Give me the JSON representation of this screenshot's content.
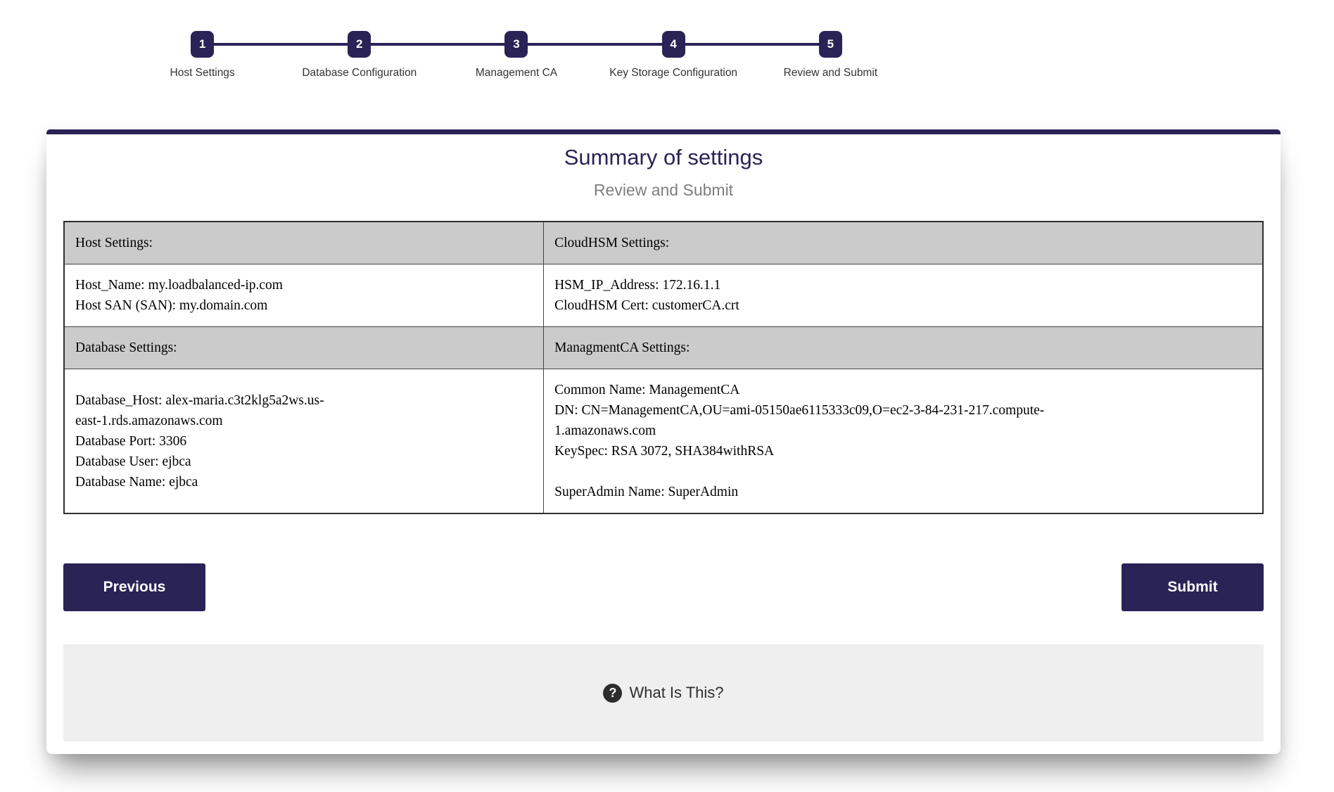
{
  "colors": {
    "accent_navy": "#2a2356",
    "table_header_gray": "#cbcbcb",
    "help_bar_gray": "#efefef",
    "subtitle_gray": "#7e7e7e"
  },
  "stepper": {
    "steps": [
      {
        "number": "1",
        "label": "Host Settings"
      },
      {
        "number": "2",
        "label": "Database Configuration"
      },
      {
        "number": "3",
        "label": "Management CA"
      },
      {
        "number": "4",
        "label": "Key Storage Configuration"
      },
      {
        "number": "5",
        "label": "Review and Submit"
      }
    ]
  },
  "card": {
    "title": "Summary of settings",
    "subtitle": "Review and Submit",
    "summary_table": {
      "sections": [
        {
          "left_header": "Host Settings:",
          "right_header": "CloudHSM Settings:",
          "left_lines": [
            "Host_Name: my.loadbalanced-ip.com",
            "Host SAN (SAN): my.domain.com"
          ],
          "right_lines": [
            "HSM_IP_Address: 172.16.1.1",
            "CloudHSM Cert: customerCA.crt"
          ]
        },
        {
          "left_header": "Database Settings:",
          "right_header": "ManagmentCA Settings:",
          "left_lines": [
            "Database_Host: alex-maria.c3t2klg5a2ws.us-",
            "east-1.rds.amazonaws.com",
            "Database Port: 3306",
            "Database User: ejbca",
            "Database Name: ejbca"
          ],
          "right_lines": [
            "Common Name: ManagementCA",
            "DN: CN=ManagementCA,OU=ami-05150ae6115333c09,O=ec2-3-84-231-217.compute-",
            "1.amazonaws.com",
            "KeySpec: RSA 3072, SHA384withRSA",
            "",
            "SuperAdmin Name: SuperAdmin"
          ]
        }
      ]
    },
    "buttons": {
      "previous": "Previous",
      "submit": "Submit"
    },
    "footer": {
      "help_icon": "?",
      "help_text": "What Is This?"
    }
  }
}
